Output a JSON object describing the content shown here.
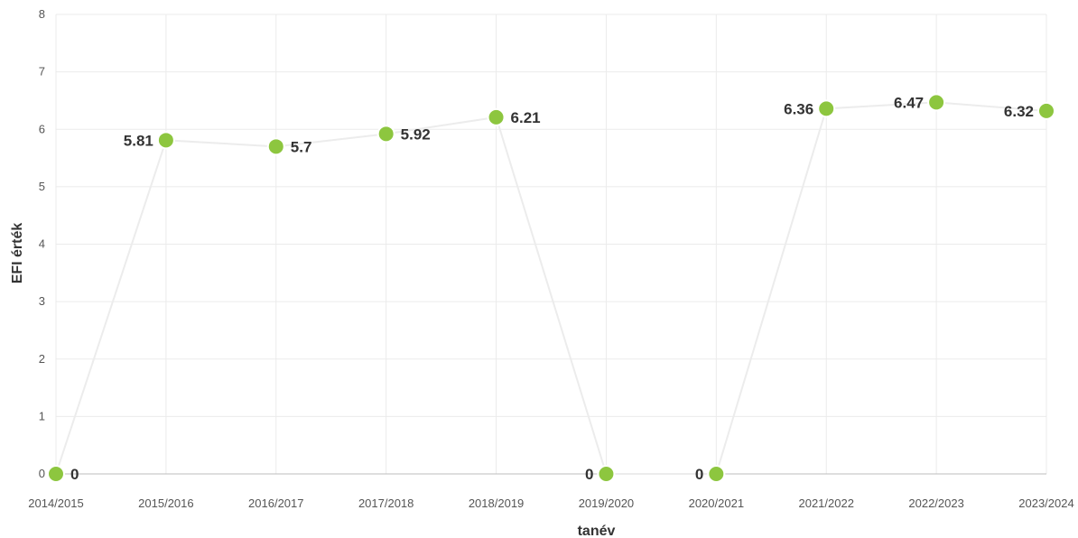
{
  "chart_data": {
    "type": "line",
    "xlabel": "tanév",
    "ylabel": "EFI érték",
    "ylim": [
      0,
      8
    ],
    "yticks": [
      "0",
      "1",
      "2",
      "3",
      "4",
      "5",
      "6",
      "7",
      "8"
    ],
    "categories": [
      "2014/2015",
      "2015/2016",
      "2016/2017",
      "2017/2018",
      "2018/2019",
      "2019/2020",
      "2020/2021",
      "2021/2022",
      "2022/2023",
      "2023/2024"
    ],
    "series": [
      {
        "values": [
          0,
          5.81,
          5.7,
          5.92,
          6.21,
          0,
          0,
          6.36,
          6.47,
          6.32
        ],
        "labels": [
          "0",
          "5.81",
          "5.7",
          "5.92",
          "6.21",
          "0",
          "0",
          "6.36",
          "6.47",
          "6.32"
        ]
      }
    ],
    "colors": {
      "line": "#ececec",
      "point": "#8dc63f",
      "grid": "#ebebeb"
    },
    "grid": true
  }
}
